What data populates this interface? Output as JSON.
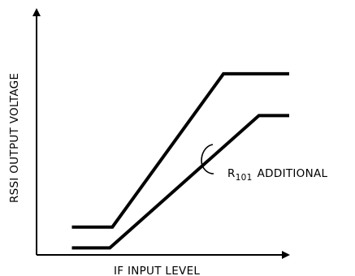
{
  "chart_data": {
    "type": "line",
    "xlabel": "IF INPUT LEVEL",
    "ylabel": "RSSI OUTPUT VOLTAGE",
    "grid": false,
    "legend": "none",
    "xlim": [
      0,
      100
    ],
    "ylim": [
      0,
      100
    ],
    "series": [
      {
        "x": [
          14,
          30,
          74,
          100
        ],
        "y": [
          12,
          12,
          78,
          78
        ]
      },
      {
        "x": [
          14,
          29,
          88,
          100
        ],
        "y": [
          3,
          3,
          60,
          60
        ]
      }
    ],
    "annotation": {
      "prefix": "R",
      "subscript": "101",
      "suffix": "ADDITIONAL"
    },
    "colors": {
      "line": "#000000",
      "axis": "#000000",
      "background": "#ffffff"
    }
  }
}
